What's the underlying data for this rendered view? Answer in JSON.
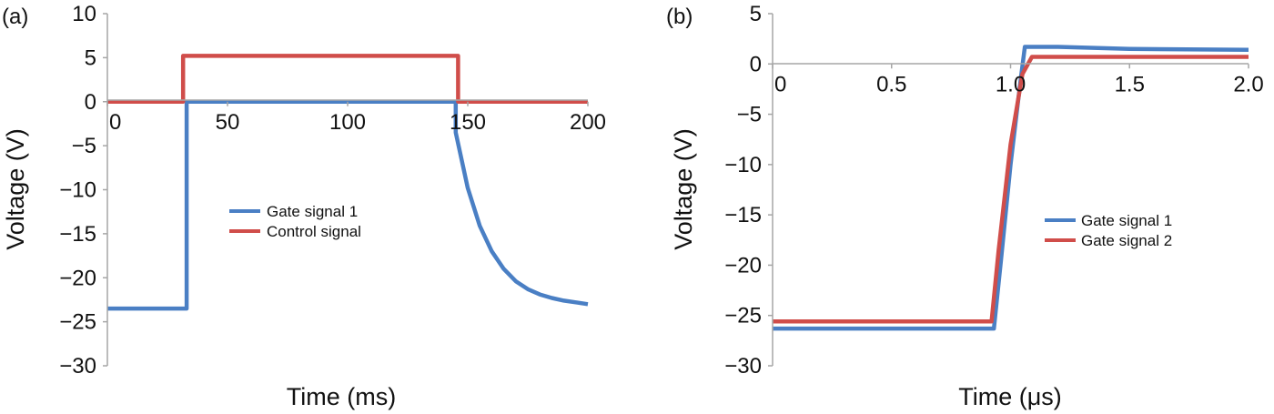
{
  "chart_data": [
    {
      "panel": "(a)",
      "type": "line",
      "xlabel": "Time (ms)",
      "ylabel": "Voltage (V)",
      "xlim": [
        0,
        200
      ],
      "ylim": [
        -30,
        10
      ],
      "xticks": [
        0,
        50,
        100,
        150,
        200
      ],
      "yticks": [
        10,
        5,
        0,
        -5,
        -10,
        -15,
        -20,
        -25,
        -30
      ],
      "xtick_labels": [
        "0",
        "50",
        "100",
        "150",
        "200"
      ],
      "ytick_labels": [
        "10",
        "5",
        "0",
        "−5",
        "−10",
        "−15",
        "−20",
        "−25",
        "−30"
      ],
      "legend_position": "center",
      "grid": false,
      "series": [
        {
          "name": "Gate signal 1",
          "color": "#4a7fc4",
          "x": [
            0,
            10,
            20,
            30,
            33,
            33,
            60,
            100,
            140,
            145,
            145,
            150,
            155,
            160,
            165,
            170,
            175,
            180,
            185,
            190,
            195,
            200
          ],
          "y": [
            -23.5,
            -23.5,
            -23.5,
            -23.5,
            -23.5,
            0,
            0,
            0,
            0,
            0,
            -3.5,
            -9.8,
            -14.1,
            -17.0,
            -19.0,
            -20.4,
            -21.3,
            -21.9,
            -22.3,
            -22.6,
            -22.8,
            -23.0
          ]
        },
        {
          "name": "Control signal",
          "color": "#d04d4a",
          "x": [
            0,
            31.5,
            31.5,
            80,
            146,
            146,
            170,
            200
          ],
          "y": [
            0,
            0,
            5.2,
            5.2,
            5.2,
            0,
            0,
            0
          ]
        }
      ]
    },
    {
      "panel": "(b)",
      "type": "line",
      "xlabel": "Time (μs)",
      "ylabel": "Voltage (V)",
      "xlim": [
        0,
        2.0
      ],
      "ylim": [
        -30,
        5
      ],
      "xticks": [
        0,
        0.5,
        1.0,
        1.5,
        2.0
      ],
      "yticks": [
        5,
        0,
        -5,
        -10,
        -15,
        -20,
        -25,
        -30
      ],
      "xtick_labels": [
        "0",
        "0.5",
        "1.0",
        "1.5",
        "2.0"
      ],
      "ytick_labels": [
        "5",
        "0",
        "−5",
        "−10",
        "−15",
        "−20",
        "−25",
        "−30"
      ],
      "legend_position": "right",
      "grid": false,
      "series": [
        {
          "name": "Gate signal 1",
          "color": "#4a7fc4",
          "x": [
            0,
            0.5,
            0.93,
            0.96,
            1.0,
            1.04,
            1.06,
            1.2,
            1.5,
            2.0
          ],
          "y": [
            -26.3,
            -26.3,
            -26.3,
            -19.5,
            -10.0,
            -2.0,
            1.7,
            1.7,
            1.5,
            1.4
          ]
        },
        {
          "name": "Gate signal 2",
          "color": "#d04d4a",
          "x": [
            0,
            0.5,
            0.92,
            0.95,
            1.0,
            1.05,
            1.09,
            1.2,
            1.5,
            2.0
          ],
          "y": [
            -25.6,
            -25.6,
            -25.6,
            -18.5,
            -8.0,
            -1.0,
            0.7,
            0.7,
            0.7,
            0.7
          ]
        }
      ]
    }
  ]
}
